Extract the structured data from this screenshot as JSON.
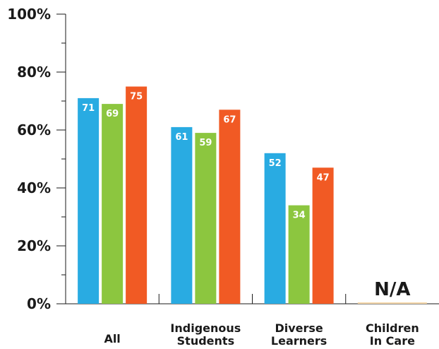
{
  "chart_data": {
    "type": "bar",
    "categories": [
      [
        "All"
      ],
      [
        "Indigenous",
        "Students"
      ],
      [
        "Diverse",
        "Learners"
      ],
      [
        "Children",
        "In Care"
      ]
    ],
    "series": [
      {
        "color": "#29abe2",
        "values": [
          71,
          61,
          52,
          null
        ]
      },
      {
        "color": "#8cc63f",
        "values": [
          69,
          59,
          34,
          null
        ]
      },
      {
        "color": "#f15a24",
        "values": [
          75,
          67,
          47,
          null
        ]
      }
    ],
    "ylim": [
      0,
      100
    ],
    "y_ticks": [
      "0%",
      "20%",
      "40%",
      "60%",
      "80%",
      "100%"
    ],
    "missing_label": "N/A",
    "grid": false,
    "legend": "none"
  }
}
